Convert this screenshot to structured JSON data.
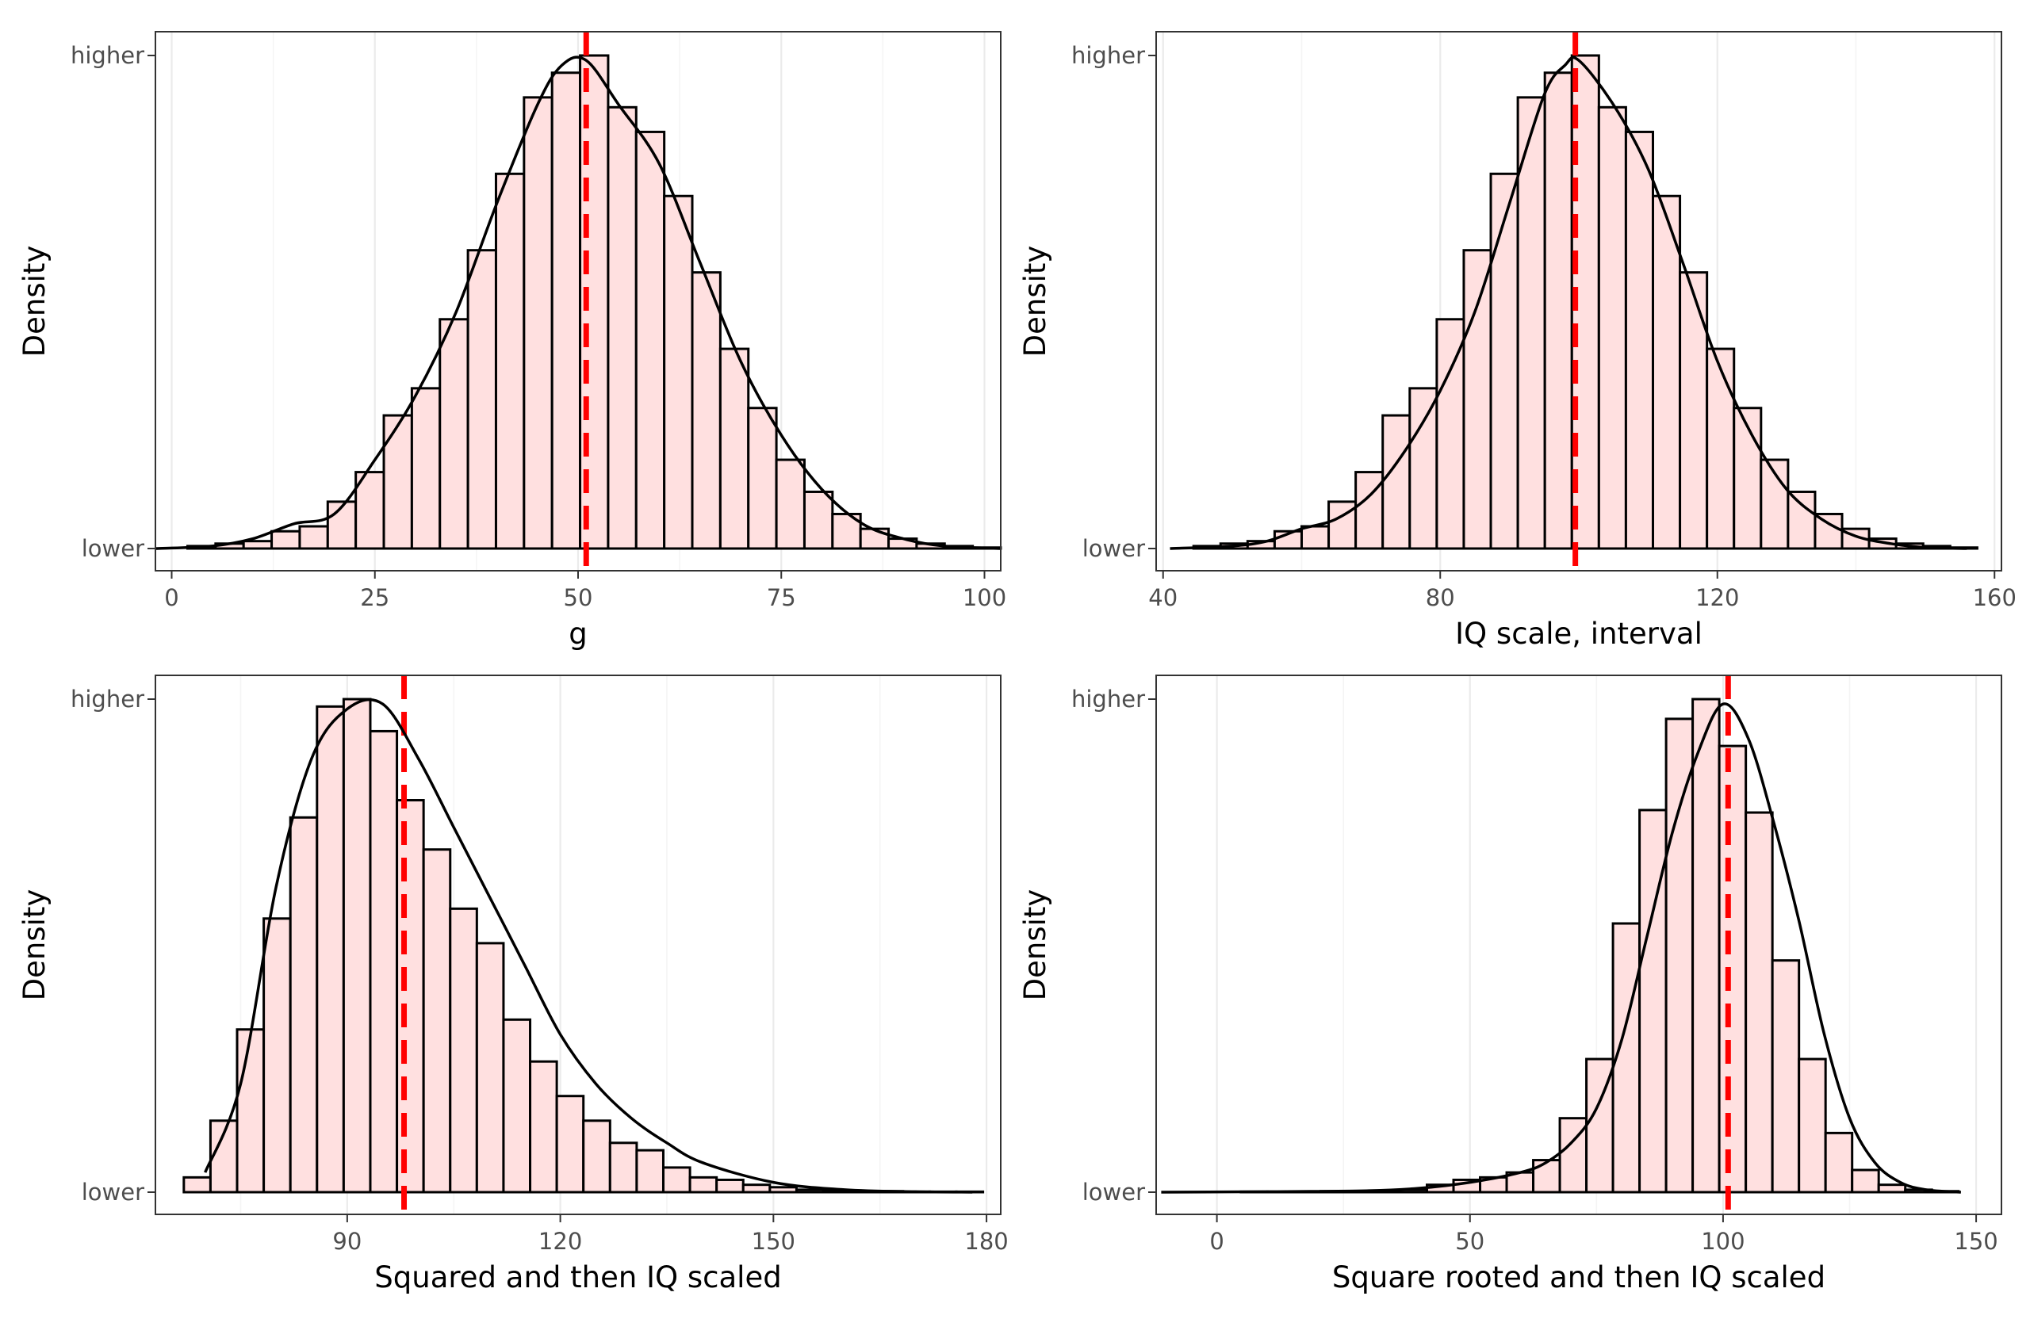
{
  "colors": {
    "bar_fill": "#ffe0e0",
    "bar_stroke": "#000000",
    "density_line": "#000000",
    "mean_line": "#ff0000",
    "grid_major": "#ebebeb",
    "grid_minor": "#f4f4f4",
    "panel_border": "#333333",
    "tick_text": "#4d4d4d"
  },
  "chart_data": [
    {
      "type": "bar",
      "subtype": "histogram with density curve",
      "xlabel": "g",
      "ylabel": "Density",
      "y_tick_labels": [
        "lower",
        "higher"
      ],
      "xlim": [
        -2,
        102
      ],
      "x_ticks": [
        0,
        25,
        50,
        75,
        100
      ],
      "grid": true,
      "mean_line": 51,
      "bins": {
        "start": -1.5,
        "width": 3.45,
        "heights": [
          0.0,
          0.005,
          0.01,
          0.015,
          0.035,
          0.045,
          0.095,
          0.155,
          0.27,
          0.325,
          0.465,
          0.605,
          0.76,
          0.915,
          0.965,
          1.0,
          0.895,
          0.845,
          0.715,
          0.56,
          0.405,
          0.285,
          0.18,
          0.115,
          0.07,
          0.04,
          0.02,
          0.01,
          0.005,
          0.002
        ]
      },
      "density": {
        "x": [
          -2,
          5,
          10,
          15,
          20,
          25,
          30,
          35,
          40,
          45,
          48,
          51,
          55,
          60,
          65,
          70,
          75,
          80,
          85,
          90,
          95,
          102
        ],
        "y": [
          0.0,
          0.005,
          0.02,
          0.05,
          0.07,
          0.18,
          0.31,
          0.48,
          0.7,
          0.9,
          0.98,
          0.99,
          0.9,
          0.78,
          0.58,
          0.38,
          0.23,
          0.12,
          0.05,
          0.02,
          0.005,
          0.0
        ]
      }
    },
    {
      "type": "bar",
      "subtype": "histogram with density curve",
      "xlabel": "IQ scale, interval",
      "ylabel": "Density",
      "y_tick_labels": [
        "lower",
        "higher"
      ],
      "xlim": [
        39,
        161
      ],
      "x_ticks": [
        40,
        80,
        120,
        160
      ],
      "grid": true,
      "mean_line": 99.5,
      "bins": {
        "start": 40.5,
        "width": 3.9,
        "heights": [
          0.0,
          0.005,
          0.01,
          0.015,
          0.035,
          0.045,
          0.095,
          0.155,
          0.27,
          0.325,
          0.465,
          0.605,
          0.76,
          0.915,
          0.965,
          1.0,
          0.895,
          0.845,
          0.715,
          0.56,
          0.405,
          0.285,
          0.18,
          0.115,
          0.07,
          0.04,
          0.02,
          0.01,
          0.005,
          0.002
        ]
      },
      "density": {
        "x": [
          41,
          50,
          55,
          60,
          65,
          70,
          75,
          80,
          85,
          90,
          95,
          98,
          100,
          105,
          110,
          115,
          120,
          125,
          130,
          135,
          140,
          145,
          150,
          156
        ],
        "y": [
          0.0,
          0.005,
          0.015,
          0.04,
          0.06,
          0.11,
          0.2,
          0.32,
          0.48,
          0.7,
          0.92,
          0.98,
          0.99,
          0.9,
          0.77,
          0.58,
          0.38,
          0.23,
          0.12,
          0.06,
          0.025,
          0.01,
          0.002,
          0.0
        ]
      }
    },
    {
      "type": "bar",
      "subtype": "histogram with density curve",
      "xlabel": "Squared and then IQ scaled",
      "ylabel": "Density",
      "y_tick_labels": [
        "lower",
        "higher"
      ],
      "xlim": [
        63,
        182
      ],
      "x_ticks": [
        90,
        120,
        150,
        180
      ],
      "grid": true,
      "mean_line": 98,
      "bins": {
        "start": 67,
        "width": 3.75,
        "heights": [
          0.03,
          0.145,
          0.33,
          0.555,
          0.76,
          0.985,
          1.0,
          0.935,
          0.795,
          0.695,
          0.575,
          0.505,
          0.35,
          0.265,
          0.195,
          0.145,
          0.1,
          0.085,
          0.05,
          0.03,
          0.025,
          0.015,
          0.01,
          0.005,
          0.004,
          0.002,
          0.002,
          0.001,
          0.001,
          0.001
        ]
      },
      "density": {
        "x": [
          70,
          75,
          80,
          85,
          90,
          95,
          100,
          105,
          110,
          115,
          120,
          125,
          130,
          135,
          140,
          150,
          160,
          170,
          178
        ],
        "y": [
          0.04,
          0.22,
          0.62,
          0.88,
          0.98,
          0.99,
          0.88,
          0.74,
          0.6,
          0.46,
          0.32,
          0.22,
          0.15,
          0.1,
          0.06,
          0.02,
          0.005,
          0.001,
          0.0
        ]
      }
    },
    {
      "type": "bar",
      "subtype": "histogram with density curve",
      "xlabel": "Square rooted and then IQ scaled",
      "ylabel": "Density",
      "y_tick_labels": [
        "lower",
        "higher"
      ],
      "xlim": [
        -12,
        155
      ],
      "x_ticks": [
        0,
        50,
        100,
        150
      ],
      "grid": true,
      "mean_line": 101,
      "bins": {
        "start": -11,
        "width": 5.25,
        "heights": [
          0.0,
          0.0,
          0.0,
          0.001,
          0.001,
          0.001,
          0.002,
          0.002,
          0.003,
          0.005,
          0.015,
          0.025,
          0.03,
          0.04,
          0.065,
          0.15,
          0.27,
          0.545,
          0.775,
          0.96,
          1.0,
          0.905,
          0.77,
          0.47,
          0.27,
          0.12,
          0.045,
          0.015,
          0.005,
          0.002
        ]
      },
      "density": {
        "x": [
          -11,
          10,
          30,
          40,
          50,
          60,
          65,
          70,
          75,
          80,
          85,
          90,
          95,
          100,
          105,
          110,
          115,
          120,
          125,
          130,
          135,
          140,
          147
        ],
        "y": [
          0.0,
          0.001,
          0.003,
          0.008,
          0.02,
          0.04,
          0.06,
          0.1,
          0.17,
          0.31,
          0.52,
          0.73,
          0.89,
          0.99,
          0.92,
          0.75,
          0.55,
          0.32,
          0.15,
          0.06,
          0.02,
          0.005,
          0.0
        ]
      }
    }
  ]
}
